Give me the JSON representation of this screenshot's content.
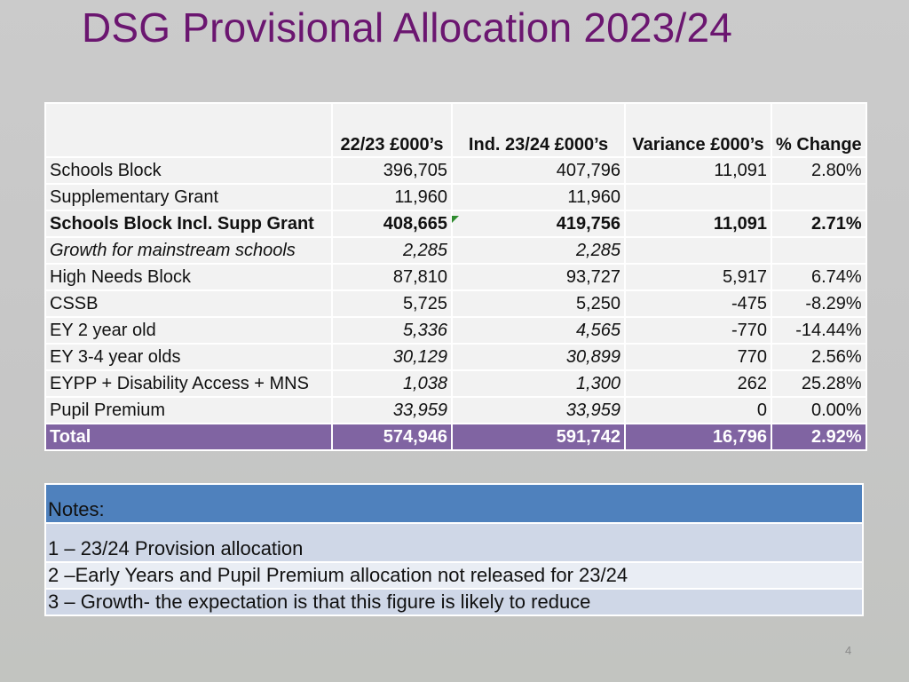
{
  "slide": {
    "title": "DSG Provisional Allocation 2023/24",
    "page_number": "4"
  },
  "table": {
    "headers": [
      "",
      "22/23 £000’s",
      "Ind. 23/24 £000’s",
      "Variance £000’s",
      "% Change"
    ],
    "rows": [
      {
        "label": "Schools Block",
        "c1": "396,705",
        "c2": "407,796",
        "c3": "11,091",
        "c4": "2.80%"
      },
      {
        "label": "Supplementary Grant",
        "c1": "11,960",
        "c2": "11,960",
        "c3": "",
        "c4": ""
      },
      {
        "label": "Schools Block Incl. Supp Grant",
        "c1": "408,665",
        "c2": "419,756",
        "c3": "11,091",
        "c4": "2.71%"
      },
      {
        "label": "Growth for mainstream schools",
        "c1": "2,285",
        "c2": "2,285",
        "c3": "",
        "c4": ""
      },
      {
        "label": "High Needs Block",
        "c1": "87,810",
        "c2": "93,727",
        "c3": "5,917",
        "c4": "6.74%"
      },
      {
        "label": "CSSB",
        "c1": "5,725",
        "c2": "5,250",
        "c3": "-475",
        "c4": "-8.29%"
      },
      {
        "label": "EY 2 year old",
        "c1": "5,336",
        "c2": "4,565",
        "c3": "-770",
        "c4": "-14.44%"
      },
      {
        "label": "EY 3-4 year olds",
        "c1": "30,129",
        "c2": "30,899",
        "c3": "770",
        "c4": "2.56%"
      },
      {
        "label": "EYPP + Disability Access + MNS",
        "c1": "1,038",
        "c2": "1,300",
        "c3": "262",
        "c4": "25.28%"
      },
      {
        "label": "Pupil Premium",
        "c1": "33,959",
        "c2": "33,959",
        "c3": "0",
        "c4": "0.00%"
      }
    ],
    "total": {
      "label": "Total",
      "c1": "574,946",
      "c2": "591,742",
      "c3": "16,796",
      "c4": "2.92%"
    }
  },
  "notes": {
    "heading": "Notes:",
    "items": [
      "1 – 23/24 Provision allocation",
      "2 –Early Years and Pupil Premium allocation not released for 23/24",
      "3 – Growth- the expectation is that this figure is likely to reduce"
    ]
  },
  "colors": {
    "title": "#6b1670",
    "total_row": "#8064a2",
    "notes_header": "#4f81bd"
  }
}
